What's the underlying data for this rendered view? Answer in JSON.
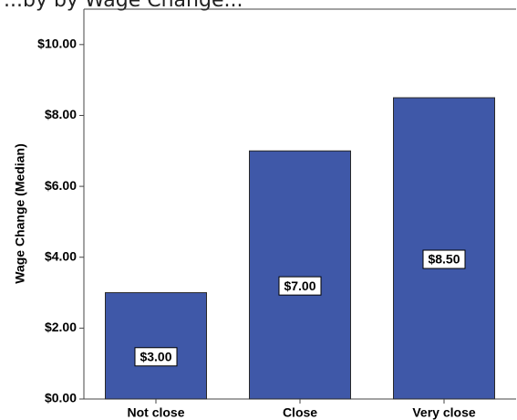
{
  "chart_data": {
    "type": "bar",
    "title": "...by by Wage Change...",
    "categories": [
      "Not close",
      "Close",
      "Very close"
    ],
    "values": [
      3.0,
      7.0,
      8.5
    ],
    "value_labels": [
      "$3.00",
      "$7.00",
      "$8.50"
    ],
    "ylabel": "Wage Change (Median)",
    "xlabel": "",
    "ylim": [
      0,
      11
    ],
    "yticks": [
      {
        "value": 0,
        "label": "$0.00"
      },
      {
        "value": 2,
        "label": "$2.00"
      },
      {
        "value": 4,
        "label": "$4.00"
      },
      {
        "value": 6,
        "label": "$6.00"
      },
      {
        "value": 8,
        "label": "$8.00"
      },
      {
        "value": 10,
        "label": "$10.00"
      }
    ],
    "grid": false,
    "legend": "none",
    "colors": {
      "bar": "#3f58a8",
      "bar_edge": "#2a2a2a",
      "axis": "#444444"
    }
  }
}
